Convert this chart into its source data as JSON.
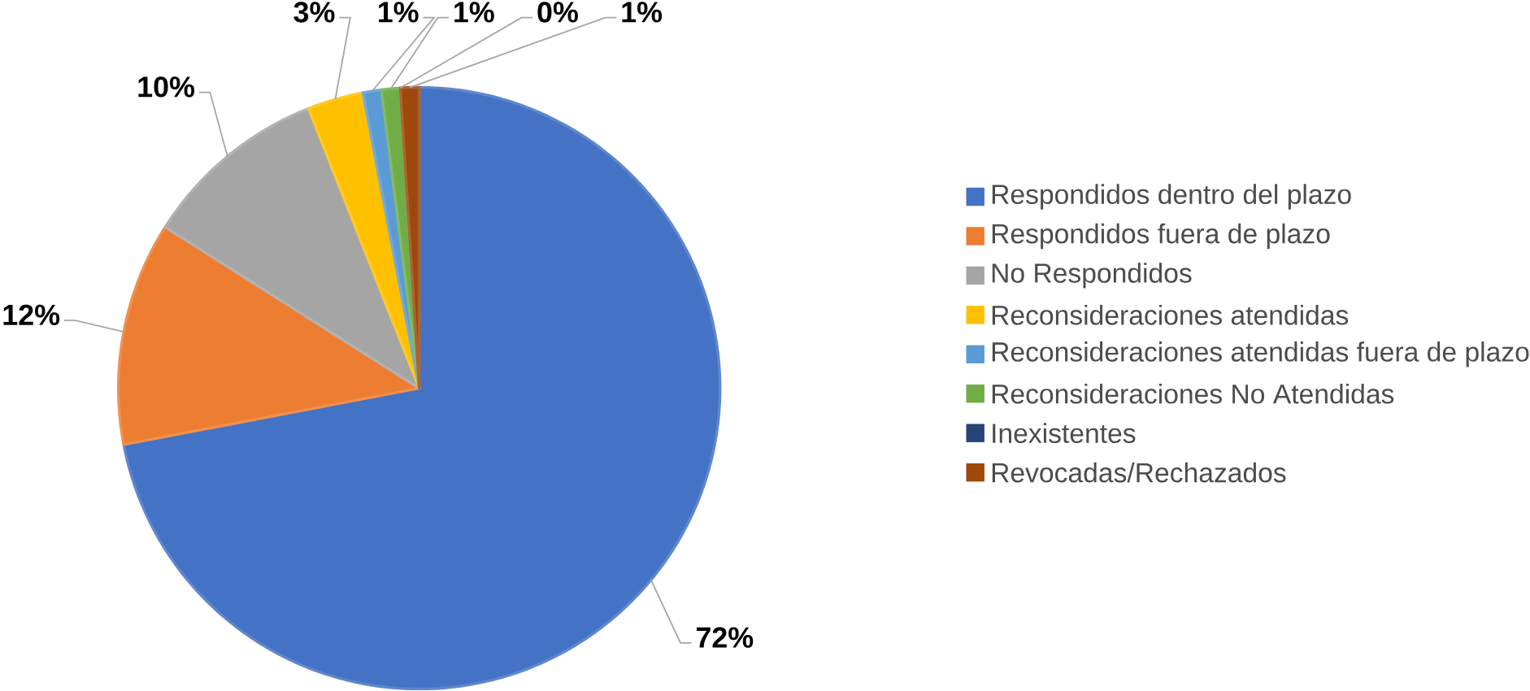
{
  "chart_data": {
    "type": "pie",
    "categories": [
      "Respondidos dentro del plazo",
      "Respondidos fuera de plazo",
      "No Respondidos",
      "Reconsideraciones atendidas",
      "Reconsideraciones atendidas fuera de plazo",
      "Reconsideraciones No Atendidas",
      "Inexistentes",
      "Revocadas/Rechazados"
    ],
    "values": [
      72,
      12,
      10,
      3,
      1,
      1,
      0,
      1
    ],
    "value_labels": [
      "72%",
      "12%",
      "10%",
      "3%",
      "1%",
      "1%",
      "0%",
      "1%"
    ],
    "colors": [
      "#4472c4",
      "#ed7d31",
      "#a5a5a5",
      "#ffc000",
      "#5b9bd5",
      "#70ad47",
      "#264478",
      "#9e480e"
    ],
    "legend": "right"
  }
}
